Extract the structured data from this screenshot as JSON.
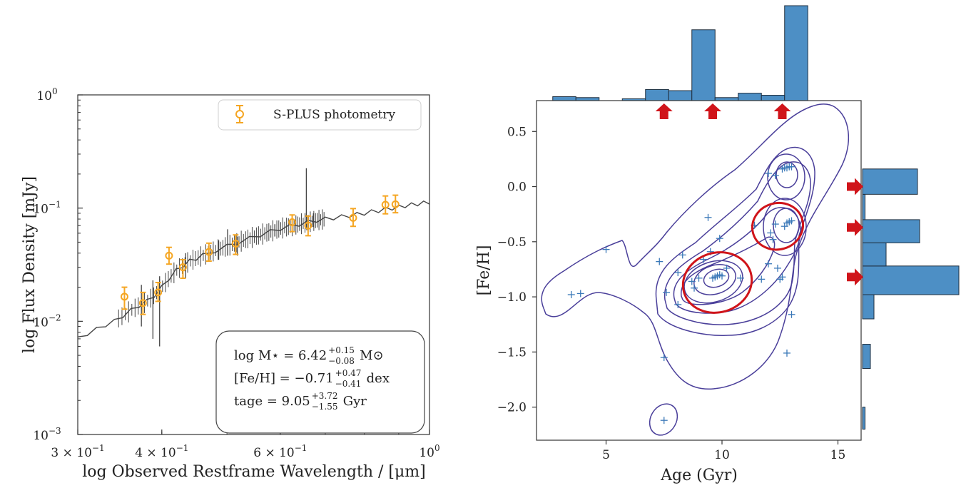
{
  "colors": {
    "photometry": "#f5a623",
    "spectrum": "#444444",
    "contour": "#4a3f9a",
    "scatter": "#3a78b8",
    "hist_fill": "#4d8fc5",
    "hist_edge": "#1f2f3f",
    "highlight": "#d0141a"
  },
  "chart_data": [
    {
      "type": "scatter",
      "xlabel": "log Observed Restframe Wavelength / [μm]",
      "ylabel": "log Flux Density [mJy]",
      "xscale": "log",
      "yscale": "log",
      "xlim": [
        0.3,
        1.0
      ],
      "ylim": [
        0.001,
        1.0
      ],
      "x_tick_labels": [
        {
          "value": 0.3,
          "base": "3 × 10",
          "exp": "−1"
        },
        {
          "value": 0.4,
          "base": "4 × 10",
          "exp": "−1"
        },
        {
          "value": 0.6,
          "base": "6 × 10",
          "exp": "−1"
        },
        {
          "value": 1.0,
          "base": "10",
          "exp": "0"
        }
      ],
      "y_tick_labels": [
        {
          "value": 1.0,
          "base": "10",
          "exp": "0"
        },
        {
          "value": 0.1,
          "base": "10",
          "exp": "−1"
        },
        {
          "value": 0.01,
          "base": "10",
          "exp": "−2"
        },
        {
          "value": 0.001,
          "base": "10",
          "exp": "−3"
        }
      ],
      "legend": {
        "label": "S-PLUS photometry",
        "position": "upper right"
      },
      "series": [
        {
          "name": "S-PLUS photometry",
          "kind": "errorbar",
          "points": [
            {
              "x": 0.352,
              "y": 0.0165,
              "lo": 0.0128,
              "hi": 0.02
            },
            {
              "x": 0.375,
              "y": 0.0145,
              "lo": 0.0115,
              "hi": 0.018
            },
            {
              "x": 0.395,
              "y": 0.018,
              "lo": 0.015,
              "hi": 0.022
            },
            {
              "x": 0.41,
              "y": 0.038,
              "lo": 0.032,
              "hi": 0.045
            },
            {
              "x": 0.43,
              "y": 0.03,
              "lo": 0.024,
              "hi": 0.035
            },
            {
              "x": 0.47,
              "y": 0.041,
              "lo": 0.034,
              "hi": 0.049
            },
            {
              "x": 0.515,
              "y": 0.0485,
              "lo": 0.039,
              "hi": 0.058
            },
            {
              "x": 0.625,
              "y": 0.075,
              "lo": 0.062,
              "hi": 0.087
            },
            {
              "x": 0.66,
              "y": 0.07,
              "lo": 0.057,
              "hi": 0.085
            },
            {
              "x": 0.77,
              "y": 0.082,
              "lo": 0.069,
              "hi": 0.099
            },
            {
              "x": 0.86,
              "y": 0.107,
              "lo": 0.089,
              "hi": 0.128
            },
            {
              "x": 0.89,
              "y": 0.108,
              "lo": 0.091,
              "hi": 0.13
            }
          ]
        },
        {
          "kind": "line",
          "x": [
            0.3,
            0.31,
            0.32,
            0.33,
            0.34,
            0.35,
            0.36,
            0.37,
            0.38,
            0.39,
            0.4,
            0.41,
            0.42,
            0.43,
            0.44,
            0.45,
            0.46,
            0.48,
            0.5,
            0.52,
            0.54,
            0.56,
            0.58,
            0.6,
            0.62,
            0.64,
            0.66,
            0.68,
            0.7,
            0.72,
            0.74,
            0.76,
            0.78,
            0.8,
            0.82,
            0.84,
            0.86,
            0.88,
            0.9,
            0.92,
            0.94,
            0.96,
            0.98,
            1.0
          ],
          "y": [
            0.007,
            0.0078,
            0.0085,
            0.0093,
            0.01,
            0.0112,
            0.0125,
            0.0138,
            0.015,
            0.017,
            0.02,
            0.024,
            0.028,
            0.031,
            0.034,
            0.036,
            0.038,
            0.042,
            0.046,
            0.05,
            0.054,
            0.058,
            0.062,
            0.066,
            0.069,
            0.072,
            0.075,
            0.078,
            0.08,
            0.082,
            0.084,
            0.086,
            0.088,
            0.09,
            0.093,
            0.095,
            0.098,
            0.1,
            0.102,
            0.105,
            0.107,
            0.109,
            0.111,
            0.113
          ],
          "spikes": [
            {
              "x": 0.373,
              "lo": 0.009,
              "hi": 0.021
            },
            {
              "x": 0.388,
              "lo": 0.007,
              "hi": 0.023
            },
            {
              "x": 0.397,
              "lo": 0.006,
              "hi": 0.025
            },
            {
              "x": 0.434,
              "lo": 0.024,
              "hi": 0.04
            },
            {
              "x": 0.486,
              "lo": 0.035,
              "hi": 0.052
            },
            {
              "x": 0.501,
              "lo": 0.038,
              "hi": 0.065
            },
            {
              "x": 0.518,
              "lo": 0.038,
              "hi": 0.056
            },
            {
              "x": 0.589,
              "lo": 0.056,
              "hi": 0.072
            },
            {
              "x": 0.656,
              "lo": 0.065,
              "hi": 0.225
            },
            {
              "x": 0.672,
              "lo": 0.068,
              "hi": 0.09
            }
          ]
        }
      ],
      "annotation": {
        "lines": [
          {
            "text": "log M⋆ = 6.42",
            "sup": "+0.15",
            "sub": "−0.08",
            "unit": "M⊙"
          },
          {
            "text": "[Fe/H] = −0.71",
            "sup": "+0.47",
            "sub": "−0.41",
            "unit": "dex"
          },
          {
            "text": "tage = 9.05",
            "sup": "+3.72",
            "sub": "−1.55",
            "unit": "Gyr"
          }
        ]
      }
    },
    {
      "type": "scatter",
      "xlabel": "Age (Gyr)",
      "ylabel": "[Fe/H]",
      "xlim": [
        2,
        16
      ],
      "ylim": [
        -2.3,
        0.78
      ],
      "x_ticks": [
        5,
        10,
        15
      ],
      "y_ticks": [
        0.5,
        0.0,
        -0.5,
        -1.0,
        -1.5,
        -2.0
      ],
      "x_tick_labels": [
        "5",
        "10",
        "15"
      ],
      "y_tick_labels": [
        "0.5",
        "0.0",
        "−0.5",
        "−1.0",
        "−1.5",
        "−2.0"
      ],
      "points": [
        [
          3.5,
          -0.98
        ],
        [
          3.9,
          -0.97
        ],
        [
          5.0,
          -0.57
        ],
        [
          7.3,
          -0.68
        ],
        [
          7.6,
          -0.96
        ],
        [
          8.1,
          -1.07
        ],
        [
          8.1,
          -0.78
        ],
        [
          8.3,
          -0.62
        ],
        [
          8.7,
          -0.86
        ],
        [
          8.8,
          -0.92
        ],
        [
          9.0,
          -0.83
        ],
        [
          9.2,
          -0.66
        ],
        [
          9.5,
          -0.59
        ],
        [
          9.6,
          -0.83
        ],
        [
          9.7,
          -0.82
        ],
        [
          9.8,
          -0.81
        ],
        [
          9.9,
          -0.8
        ],
        [
          10.0,
          -0.81
        ],
        [
          10.2,
          -0.74
        ],
        [
          10.8,
          -0.83
        ],
        [
          11.7,
          -0.84
        ],
        [
          11.4,
          -0.35
        ],
        [
          9.9,
          -0.47
        ],
        [
          9.4,
          -0.28
        ],
        [
          12.0,
          -0.7
        ],
        [
          12.1,
          -0.42
        ],
        [
          12.2,
          -0.48
        ],
        [
          12.3,
          -0.34
        ],
        [
          12.4,
          -0.74
        ],
        [
          12.5,
          -0.84
        ],
        [
          12.6,
          -0.82
        ],
        [
          12.7,
          -0.36
        ],
        [
          12.8,
          -0.33
        ],
        [
          12.9,
          -0.32
        ],
        [
          13.0,
          -0.31
        ],
        [
          12.6,
          0.16
        ],
        [
          12.7,
          0.17
        ],
        [
          12.8,
          0.17
        ],
        [
          12.9,
          0.18
        ],
        [
          13.0,
          0.18
        ],
        [
          12.3,
          0.1
        ],
        [
          12.0,
          0.12
        ],
        [
          12.8,
          -1.51
        ],
        [
          13.0,
          -1.16
        ],
        [
          7.5,
          -1.55
        ],
        [
          7.5,
          -2.12
        ]
      ],
      "highlights": [
        {
          "cx": 9.8,
          "cy": -0.87,
          "rx": 1.5,
          "ry": 0.27
        },
        {
          "cx": 12.4,
          "cy": -0.36,
          "rx": 1.1,
          "ry": 0.21
        }
      ],
      "top_histogram": {
        "edges": [
          2.7,
          3.7,
          4.7,
          5.7,
          6.7,
          7.7,
          8.7,
          9.7,
          10.7,
          11.7,
          12.7,
          13.7
        ],
        "counts": [
          0.85,
          0.65,
          0,
          0.4,
          2.4,
          2.15,
          15.3,
          0.65,
          1.6,
          1.15,
          20.5
        ]
      },
      "right_histogram": {
        "bins": [
          {
            "lo": -2.2,
            "hi": -2.0,
            "count": 0.35
          },
          {
            "lo": -1.65,
            "hi": -1.43,
            "count": 1.1
          },
          {
            "lo": -1.2,
            "hi": -0.98,
            "count": 1.6
          },
          {
            "lo": -0.98,
            "hi": -0.72,
            "count": 13.5
          },
          {
            "lo": -0.72,
            "hi": -0.51,
            "count": 3.3
          },
          {
            "lo": -0.51,
            "hi": -0.3,
            "count": 8.0
          },
          {
            "lo": -0.3,
            "hi": -0.07,
            "count": 0.35
          },
          {
            "lo": -0.07,
            "hi": 0.16,
            "count": 7.7
          }
        ]
      },
      "marker_arrows_top_x": [
        7.5,
        9.6,
        12.6
      ],
      "marker_arrows_right_y": [
        0.0,
        -0.37,
        -0.82
      ]
    }
  ]
}
